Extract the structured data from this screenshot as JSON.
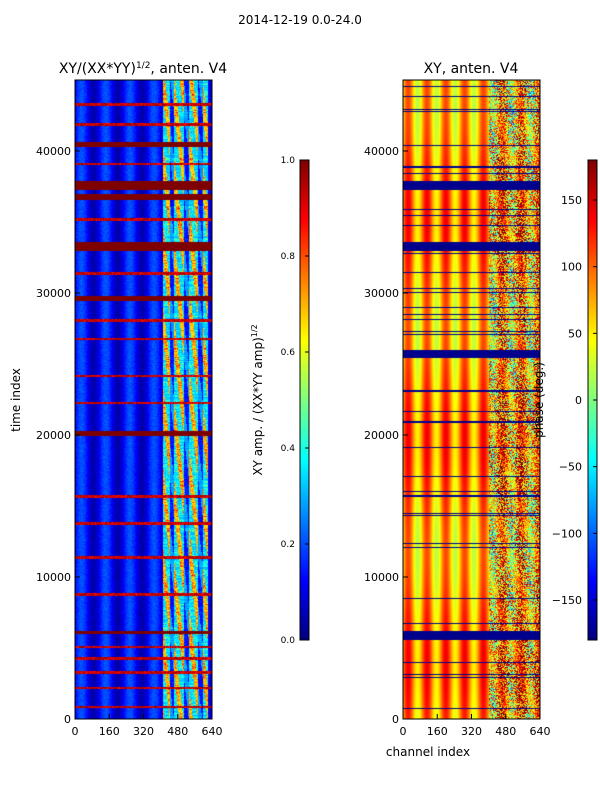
{
  "figure": {
    "suptitle": "2014-12-19 0.0-24.0"
  },
  "colors": {
    "jet": [
      "#00007f",
      "#0000ff",
      "#007fff",
      "#00ffff",
      "#7fff7f",
      "#ffff00",
      "#ff7f00",
      "#ff0000",
      "#7f0000"
    ],
    "axis": "#000000",
    "background": "#ffffff"
  },
  "chart_data": [
    {
      "type": "heatmap",
      "title": "XY/(XX*YY)",
      "title_superscript": "1/2",
      "title_suffix": ", anten. V4",
      "xlabel": "",
      "ylabel": "time index",
      "xlim": [
        0,
        640
      ],
      "ylim": [
        0,
        45000
      ],
      "xticks": [
        0,
        160,
        320,
        480,
        640
      ],
      "yticks": [
        0,
        10000,
        20000,
        30000,
        40000
      ],
      "quantity": "normalized XY amplitude",
      "value_range": [
        0.0,
        1.0
      ],
      "base_level": 0.1,
      "active_band_channels": [
        410,
        620
      ],
      "saturated_time_bands": [
        [
          37300,
          37900
        ],
        [
          36600,
          37000
        ],
        [
          33000,
          33600
        ],
        [
          40300,
          40700
        ],
        [
          29500,
          29800
        ],
        [
          20000,
          20300
        ],
        [
          6000,
          6200
        ]
      ],
      "flagged_time_rows": [
        900,
        2200,
        3300,
        4300,
        5100,
        8800,
        11400,
        13800,
        15700,
        22300,
        24200,
        26800,
        28100,
        31400,
        35200,
        39100,
        41900,
        43300
      ],
      "colorbar": {
        "label": "XY amp. / (XX*YY amp)",
        "label_superscript": "1/2",
        "range": [
          0.0,
          1.0
        ],
        "ticks": [
          "0.0",
          "0.2",
          "0.4",
          "0.6",
          "0.8",
          "1.0"
        ]
      }
    },
    {
      "type": "heatmap",
      "title": "XY, anten. V4",
      "xlabel": "channel index",
      "ylabel": "",
      "xlim": [
        0,
        640
      ],
      "ylim": [
        0,
        45000
      ],
      "xticks": [
        0,
        160,
        320,
        480,
        640
      ],
      "yticks": [
        0,
        10000,
        20000,
        30000,
        40000
      ],
      "quantity": "XY phase (deg)",
      "value_range": [
        -180,
        180
      ],
      "phase_pattern": "vertical stripes of roughly 40 to 120 deg across channels, noisy above channel ~400",
      "flagged_time_bands": [
        [
          37300,
          37900
        ],
        [
          33000,
          33600
        ],
        [
          25500,
          26000
        ],
        [
          5600,
          6200
        ]
      ],
      "colorbar": {
        "label": "phase (deg.)",
        "range": [
          -180,
          180
        ],
        "ticks": [
          "−150",
          "−100",
          "−50",
          "0",
          "50",
          "100",
          "150"
        ]
      }
    }
  ]
}
